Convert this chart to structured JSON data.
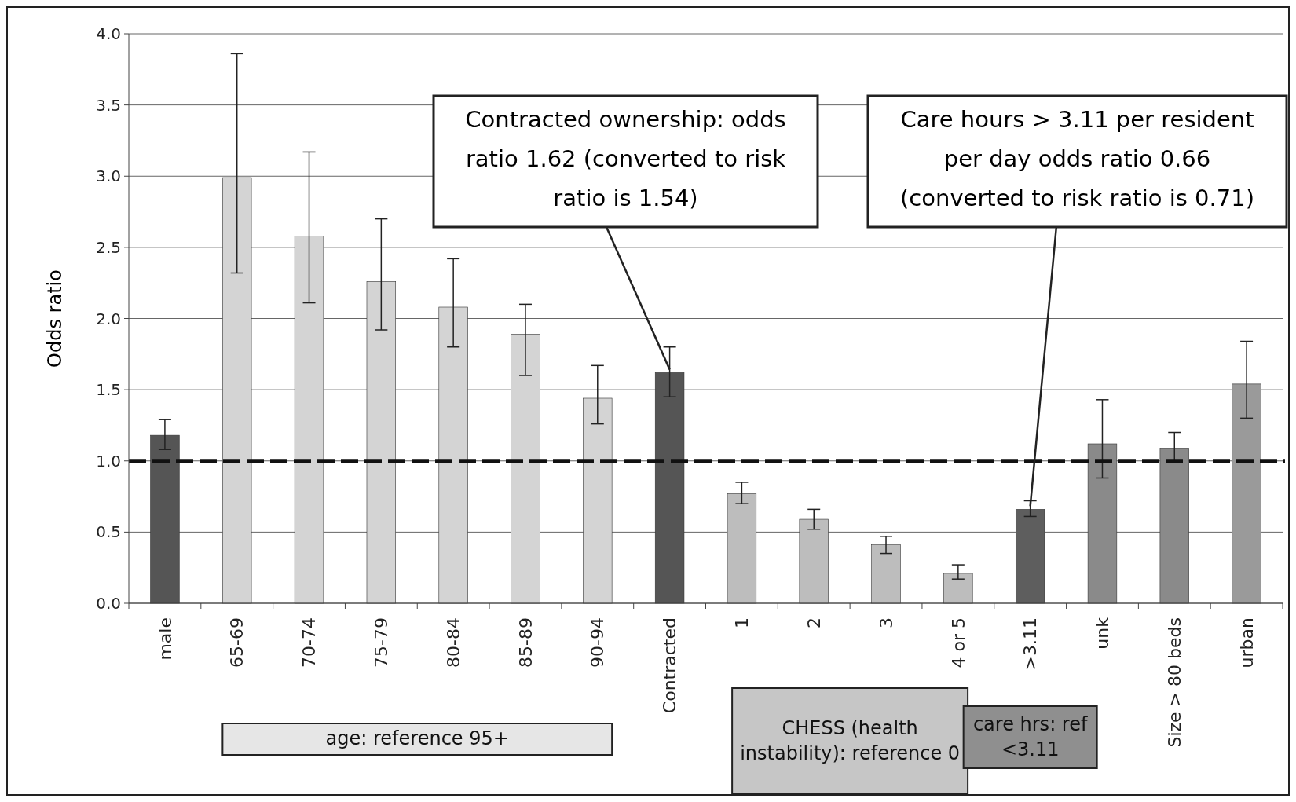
{
  "chart_data": {
    "type": "bar",
    "ylabel": "Odds ratio",
    "categories": [
      "male",
      "65-69",
      "70-74",
      "75-79",
      "80-84",
      "85-89",
      "90-94",
      "Contracted",
      "1",
      "2",
      "3",
      "4 or 5",
      ">3.11",
      "unk",
      "Size > 80 beds",
      "urban"
    ],
    "values": [
      1.18,
      2.99,
      2.58,
      2.26,
      2.08,
      1.89,
      1.44,
      1.62,
      0.77,
      0.59,
      0.41,
      0.21,
      0.66,
      1.12,
      1.09,
      1.54
    ],
    "errors": [
      [
        1.08,
        1.29
      ],
      [
        2.32,
        3.86
      ],
      [
        2.11,
        3.17
      ],
      [
        1.92,
        2.7
      ],
      [
        1.8,
        2.42
      ],
      [
        1.6,
        2.1
      ],
      [
        1.26,
        1.67
      ],
      [
        1.45,
        1.8
      ],
      [
        0.7,
        0.85
      ],
      [
        0.52,
        0.66
      ],
      [
        0.35,
        0.47
      ],
      [
        0.17,
        0.27
      ],
      [
        0.61,
        0.72
      ],
      [
        0.88,
        1.43
      ],
      [
        0.99,
        1.2
      ],
      [
        1.3,
        1.84
      ]
    ],
    "colors": [
      "#555555",
      "#d4d4d4",
      "#d4d4d4",
      "#d4d4d4",
      "#d4d4d4",
      "#d4d4d4",
      "#d4d4d4",
      "#555555",
      "#bdbdbd",
      "#bdbdbd",
      "#bdbdbd",
      "#bdbdbd",
      "#5e5e5e",
      "#8a8a8a",
      "#8a8a8a",
      "#9a9a9a"
    ],
    "ylim": [
      0,
      4
    ],
    "yticks": [
      {
        "value": 0,
        "label": "0.0"
      },
      {
        "value": 0.5,
        "label": "0.5"
      },
      {
        "value": 1,
        "label": "1.0"
      },
      {
        "value": 1.5,
        "label": "1.5"
      },
      {
        "value": 2,
        "label": "2.0"
      },
      {
        "value": 2.5,
        "label": "2.5"
      },
      {
        "value": 3,
        "label": "3.0"
      },
      {
        "value": 3.5,
        "label": "3.5"
      },
      {
        "value": 4,
        "label": "4.0"
      }
    ],
    "grid": "y",
    "ref_lines": [
      {
        "axis": "y",
        "value": 1,
        "color": "#111111",
        "line_style": "dashed"
      }
    ],
    "annotations": [
      {
        "text": "Contracted ownership: odds ratio 1.62 (converted to risk ratio is 1.54)",
        "x": "Contracted",
        "y": 1.62
      },
      {
        "text": "Care hours > 3.11 per resident per day odds ratio 0.66 (converted to risk ratio is 0.71)",
        "x": ">3.11",
        "y": 0.66
      },
      "age: reference 95+",
      "CHESS (health instability): reference 0",
      "care hrs: ref <3.11"
    ]
  }
}
